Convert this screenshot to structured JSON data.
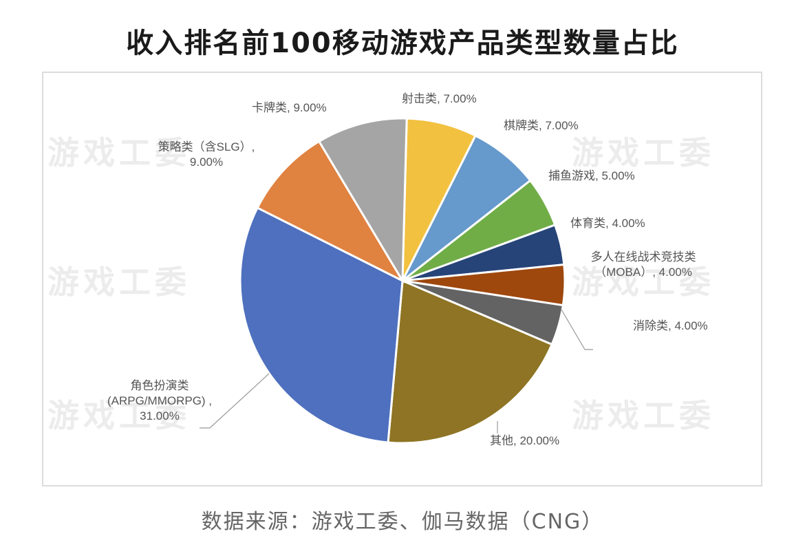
{
  "title": "收入排名前100移动游戏产品类型数量占比",
  "source": "数据来源：游戏工委、伽马数据（CNG）",
  "watermark": "游戏工委",
  "chart_data": {
    "type": "pie",
    "title": "收入排名前100移动游戏产品类型数量占比",
    "start_angle_deg": 0,
    "direction": "clockwise",
    "slices": [
      {
        "label": "射击类",
        "value": 7.0,
        "display": "射击类, 7.00%",
        "color": "#F2C140"
      },
      {
        "label": "棋牌类",
        "value": 7.0,
        "display": "棋牌类, 7.00%",
        "color": "#6699CC"
      },
      {
        "label": "捕鱼游戏",
        "value": 5.0,
        "display": "捕鱼游戏, 5.00%",
        "color": "#70AD47"
      },
      {
        "label": "体育类",
        "value": 4.0,
        "display": "体育类, 4.00%",
        "color": "#264478"
      },
      {
        "label": "多人在线战术竞技类（MOBA）",
        "value": 4.0,
        "display_line1": "多人在线战术竞技类",
        "display_line2": "（MOBA）, 4.00%",
        "color": "#9E480E"
      },
      {
        "label": "消除类",
        "value": 4.0,
        "display": "消除类, 4.00%",
        "color": "#636363"
      },
      {
        "label": "其他",
        "value": 20.0,
        "display": "其他, 20.00%",
        "color": "#8E7424"
      },
      {
        "label": "角色扮演类（ARPG/MMORPG）",
        "value": 31.0,
        "display_line1": "角色扮演类",
        "display_line2": "(ARPG/MMORPG) ,",
        "display_line3": "31.00%",
        "color": "#4E70BE"
      },
      {
        "label": "策略类（含SLG）",
        "value": 9.0,
        "display_line1": "策略类（含SLG）,",
        "display_line2": "9.00%",
        "color": "#E08240"
      },
      {
        "label": "卡牌类",
        "value": 9.0,
        "display": "卡牌类, 9.00%",
        "color": "#A5A5A5"
      }
    ],
    "unit": "%"
  }
}
